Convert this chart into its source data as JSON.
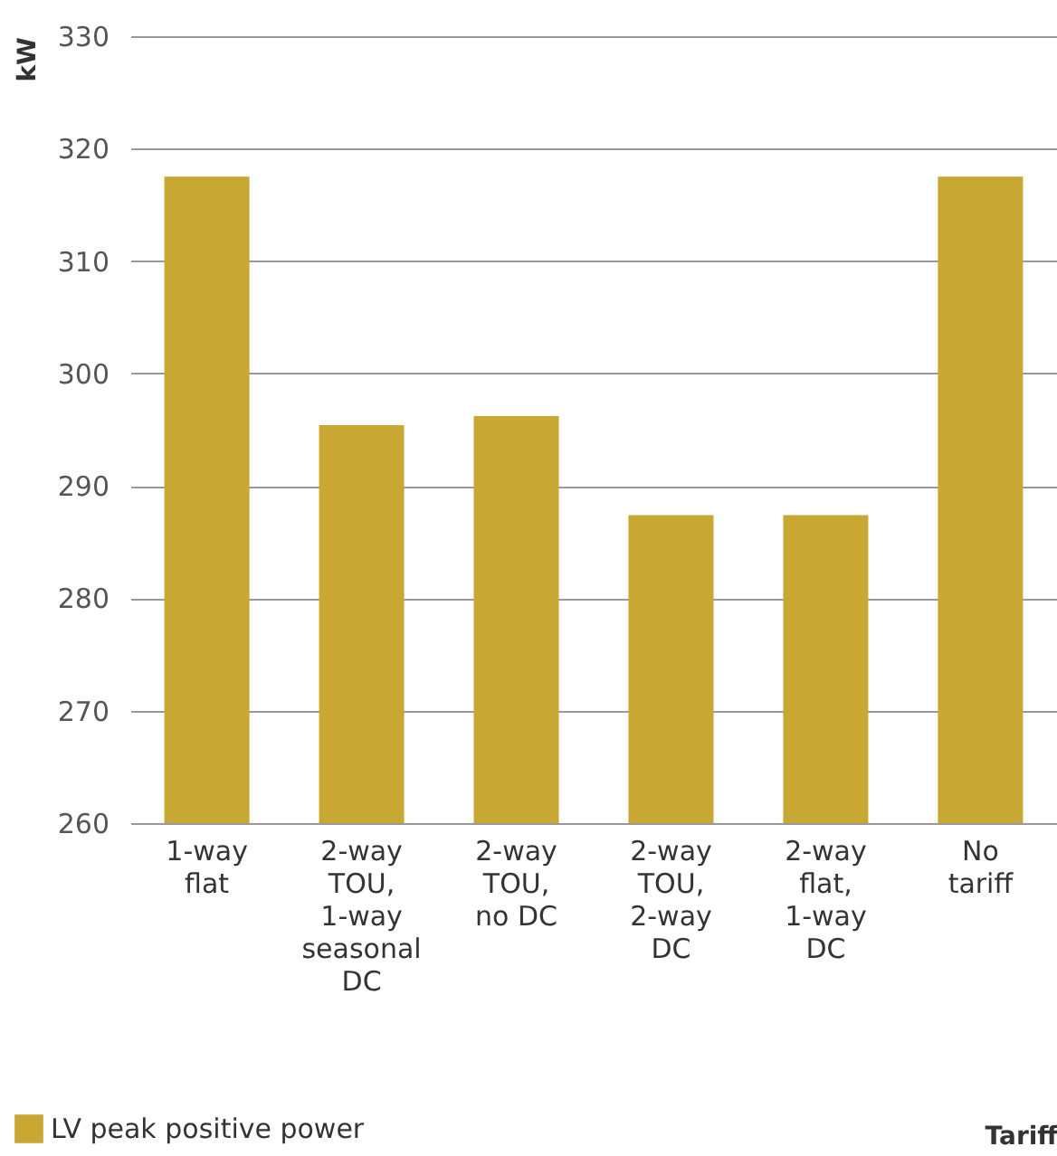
{
  "chart_data": {
    "type": "bar",
    "xlabel": "Tariff",
    "ylabel": "kW",
    "categories": [
      "1-way\nflat",
      "2-way\nTOU,\n1-way\nseasonal\nDC",
      "2-way\nTOU,\nno DC",
      "2-way\nTOU,\n2-way\nDC",
      "2-way\nflat,\n1-way\nDC",
      "No\ntariff"
    ],
    "series": [
      {
        "name": "LV peak positive power",
        "color": "#c8a733",
        "values": [
          317.5,
          295.4,
          296.2,
          287.4,
          287.4,
          317.5
        ]
      }
    ],
    "ylim": [
      260,
      330
    ],
    "yticks": [
      260,
      270,
      280,
      290,
      300,
      310,
      320,
      330
    ],
    "grid": "y",
    "legend": "bottom left"
  }
}
